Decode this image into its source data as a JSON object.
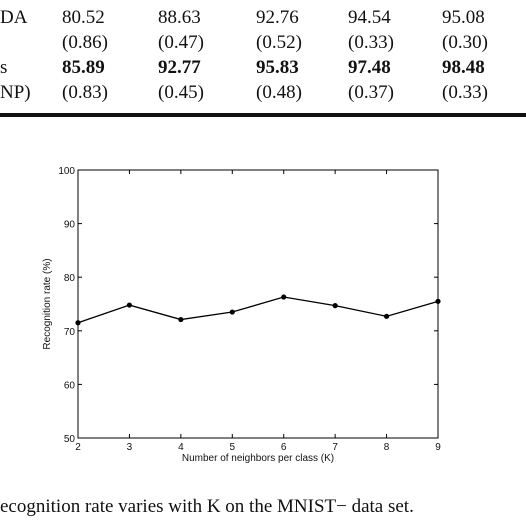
{
  "table": {
    "rows": [
      {
        "label": "",
        "values": [
          "",
          "",
          "",
          "",
          ""
        ],
        "bold": false
      },
      {
        "label": "DA",
        "values": [
          "80.52",
          "88.63",
          "92.76",
          "94.54",
          "95.08"
        ],
        "bold": false
      },
      {
        "label": "",
        "values": [
          "(0.86)",
          "(0.47)",
          "(0.52)",
          "(0.33)",
          "(0.30)"
        ],
        "bold": false
      },
      {
        "label": "s",
        "values": [
          "85.89",
          "92.77",
          "95.83",
          "97.48",
          "98.48"
        ],
        "bold": true
      },
      {
        "label": "NP)",
        "values": [
          "(0.83)",
          "(0.45)",
          "(0.48)",
          "(0.37)",
          "(0.33)"
        ],
        "bold": false
      }
    ]
  },
  "chart_data": {
    "type": "line",
    "xlabel": "Number of neighbors per class (K)",
    "ylabel": "Recognition rate (%)",
    "xlim": [
      2,
      9
    ],
    "ylim": [
      50,
      100
    ],
    "xticks": [
      2,
      3,
      4,
      5,
      6,
      7,
      8,
      9
    ],
    "yticks": [
      50,
      60,
      70,
      80,
      90,
      100
    ],
    "x": [
      2,
      3,
      4,
      5,
      6,
      7,
      8,
      9
    ],
    "y": [
      71.5,
      74.8,
      72.1,
      73.5,
      76.3,
      74.7,
      72.7,
      75.5
    ],
    "grid": false,
    "line_color": "#000000",
    "marker": "dot"
  },
  "caption": {
    "text": "ecognition rate varies with K on the MNIST− data set."
  }
}
